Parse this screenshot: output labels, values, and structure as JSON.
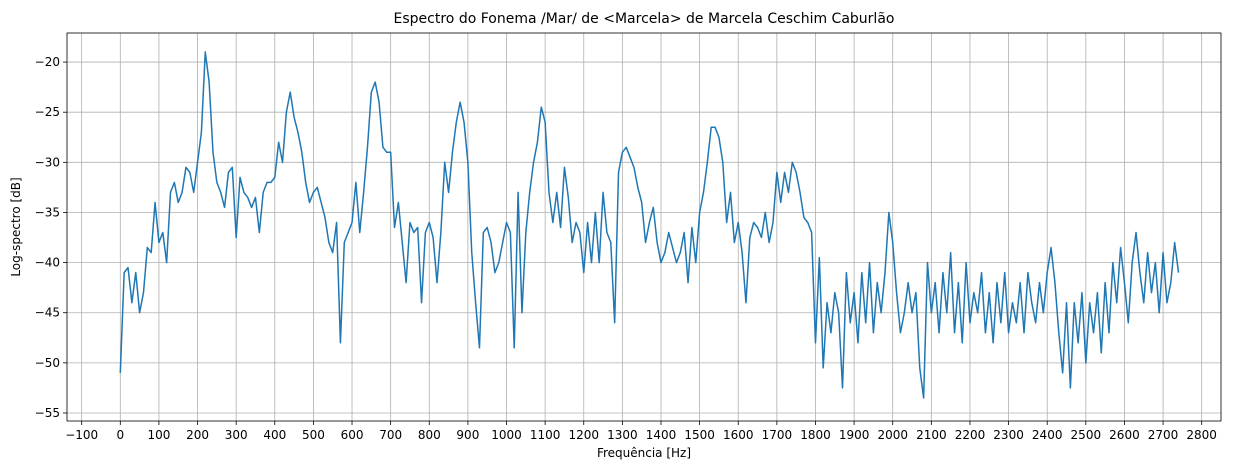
{
  "chart_data": {
    "type": "line",
    "title": "Espectro do Fonema /Mar/ de <Marcela> de Marcela Ceschim Caburlão",
    "x_label": "Frequência [Hz]",
    "y_label": "Log-spectro [dB]",
    "x": [
      0,
      10,
      20,
      30,
      40,
      50,
      60,
      70,
      80,
      90,
      100,
      110,
      120,
      130,
      140,
      150,
      160,
      170,
      180,
      190,
      200,
      210,
      220,
      230,
      240,
      250,
      260,
      270,
      280,
      290,
      300,
      310,
      320,
      330,
      340,
      350,
      360,
      370,
      380,
      390,
      400,
      410,
      420,
      430,
      440,
      450,
      460,
      470,
      480,
      490,
      500,
      510,
      520,
      530,
      540,
      550,
      560,
      570,
      580,
      590,
      600,
      610,
      620,
      630,
      640,
      650,
      660,
      670,
      680,
      690,
      700,
      710,
      720,
      730,
      740,
      750,
      760,
      770,
      780,
      790,
      800,
      810,
      820,
      830,
      840,
      850,
      860,
      870,
      880,
      890,
      900,
      910,
      920,
      930,
      940,
      950,
      960,
      970,
      980,
      990,
      1000,
      1010,
      1020,
      1030,
      1040,
      1050,
      1060,
      1070,
      1080,
      1090,
      1100,
      1110,
      1120,
      1130,
      1140,
      1150,
      1160,
      1170,
      1180,
      1190,
      1200,
      1210,
      1220,
      1230,
      1240,
      1250,
      1260,
      1270,
      1280,
      1290,
      1300,
      1310,
      1320,
      1330,
      1340,
      1350,
      1360,
      1370,
      1380,
      1390,
      1400,
      1410,
      1420,
      1430,
      1440,
      1450,
      1460,
      1470,
      1480,
      1490,
      1500,
      1510,
      1520,
      1530,
      1540,
      1550,
      1560,
      1570,
      1580,
      1590,
      1600,
      1610,
      1620,
      1630,
      1640,
      1650,
      1660,
      1670,
      1680,
      1690,
      1700,
      1710,
      1720,
      1730,
      1740,
      1750,
      1760,
      1770,
      1780,
      1790,
      1800,
      1810,
      1820,
      1830,
      1840,
      1850,
      1860,
      1870,
      1880,
      1890,
      1900,
      1910,
      1920,
      1930,
      1940,
      1950,
      1960,
      1970,
      1980,
      1990,
      2000,
      2010,
      2020,
      2030,
      2040,
      2050,
      2060,
      2070,
      2080,
      2090,
      2100,
      2110,
      2120,
      2130,
      2140,
      2150,
      2160,
      2170,
      2180,
      2190,
      2200,
      2210,
      2220,
      2230,
      2240,
      2250,
      2260,
      2270,
      2280,
      2290,
      2300,
      2310,
      2320,
      2330,
      2340,
      2350,
      2360,
      2370,
      2380,
      2390,
      2400,
      2410,
      2420,
      2430,
      2440,
      2450,
      2460,
      2470,
      2480,
      2490,
      2500,
      2510,
      2520,
      2530,
      2540,
      2550,
      2560,
      2570,
      2580,
      2590,
      2600,
      2610,
      2620,
      2630,
      2640,
      2650,
      2660,
      2670,
      2680,
      2690,
      2700,
      2710,
      2720,
      2730,
      2740
    ],
    "values": [
      -51,
      -41,
      -40.5,
      -44,
      -41,
      -45,
      -43,
      -38.5,
      -39,
      -34,
      -38,
      -37,
      -40,
      -33,
      -32,
      -34,
      -33,
      -30.5,
      -31,
      -33,
      -30,
      -27,
      -19,
      -22,
      -29,
      -32,
      -33,
      -34.5,
      -31,
      -30.5,
      -37.5,
      -31.5,
      -33,
      -33.5,
      -34.5,
      -33.5,
      -37,
      -33,
      -32,
      -32,
      -31.5,
      -28,
      -30,
      -25,
      -23,
      -25.5,
      -27,
      -29,
      -32,
      -34,
      -33,
      -32.5,
      -34,
      -35.5,
      -38,
      -39,
      -36,
      -48,
      -38,
      -37,
      -36,
      -32,
      -37,
      -33,
      -28.5,
      -23,
      -22,
      -24,
      -28.5,
      -29,
      -29,
      -36.5,
      -34,
      -38,
      -42,
      -36,
      -37,
      -36.5,
      -44,
      -37,
      -36,
      -37.5,
      -42,
      -37,
      -30,
      -33,
      -29,
      -26,
      -24,
      -26,
      -30,
      -39,
      -44,
      -48.5,
      -37,
      -36.5,
      -38,
      -41,
      -40,
      -38,
      -36,
      -37,
      -48.5,
      -33,
      -45,
      -37,
      -33,
      -30,
      -28,
      -24.5,
      -26,
      -33,
      -36,
      -33,
      -36.5,
      -30.5,
      -33.5,
      -38,
      -36,
      -37,
      -41,
      -36,
      -40,
      -35,
      -40,
      -33,
      -37,
      -38,
      -46,
      -31,
      -29,
      -28.5,
      -29.5,
      -30.5,
      -32.5,
      -34,
      -38,
      -36,
      -34.5,
      -38,
      -40,
      -39,
      -37,
      -38.5,
      -40,
      -39,
      -37,
      -42,
      -36.5,
      -40,
      -35,
      -33,
      -30,
      -26.5,
      -26.5,
      -27.5,
      -30,
      -36,
      -33,
      -38,
      -36,
      -39,
      -44,
      -37.5,
      -36,
      -36.5,
      -37.5,
      -35,
      -38,
      -36,
      -31,
      -34,
      -31,
      -33,
      -30,
      -31,
      -33,
      -35.5,
      -36,
      -37,
      -48,
      -39.5,
      -50.5,
      -44,
      -47,
      -43,
      -45,
      -52.5,
      -41,
      -46,
      -43,
      -48,
      -41,
      -46,
      -40,
      -47,
      -42,
      -45,
      -41,
      -35,
      -38,
      -43,
      -47,
      -45,
      -42,
      -45,
      -43,
      -50.5,
      -53.5,
      -40,
      -45,
      -42,
      -47,
      -41,
      -45,
      -39,
      -47,
      -42,
      -48,
      -40,
      -46,
      -43,
      -45,
      -41,
      -47,
      -43,
      -48,
      -42,
      -46,
      -41,
      -47,
      -44,
      -46,
      -42,
      -47,
      -41,
      -44,
      -46,
      -42,
      -45,
      -41,
      -38.5,
      -42,
      -47,
      -51,
      -44,
      -52.5,
      -44,
      -48,
      -43,
      -50,
      -44,
      -47,
      -43,
      -49,
      -42,
      -47,
      -40,
      -44,
      -38.5,
      -42,
      -46,
      -40,
      -37,
      -41,
      -44,
      -39,
      -43,
      -40,
      -45,
      -39,
      -44,
      -42,
      -38,
      -41
    ],
    "color": "#1f77b4",
    "xlim": [
      -138,
      2850
    ],
    "ylim": [
      -55.8,
      -17.1
    ],
    "xticks": [
      {
        "value": -100,
        "label": "−100"
      },
      0,
      100,
      200,
      300,
      400,
      500,
      600,
      700,
      800,
      900,
      1000,
      1100,
      1200,
      1300,
      1400,
      1500,
      1600,
      1700,
      1800,
      1900,
      2000,
      2100,
      2200,
      2300,
      2400,
      2500,
      2600,
      2700,
      2800
    ],
    "yticks": [
      {
        "value": -55,
        "label": "−55"
      },
      {
        "value": -50,
        "label": "−50"
      },
      {
        "value": -45,
        "label": "−45"
      },
      {
        "value": -40,
        "label": "−40"
      },
      {
        "value": -35,
        "label": "−35"
      },
      {
        "value": -30,
        "label": "−30"
      },
      {
        "value": -25,
        "label": "−25"
      },
      {
        "value": -20,
        "label": "−20"
      }
    ],
    "grid": true
  }
}
